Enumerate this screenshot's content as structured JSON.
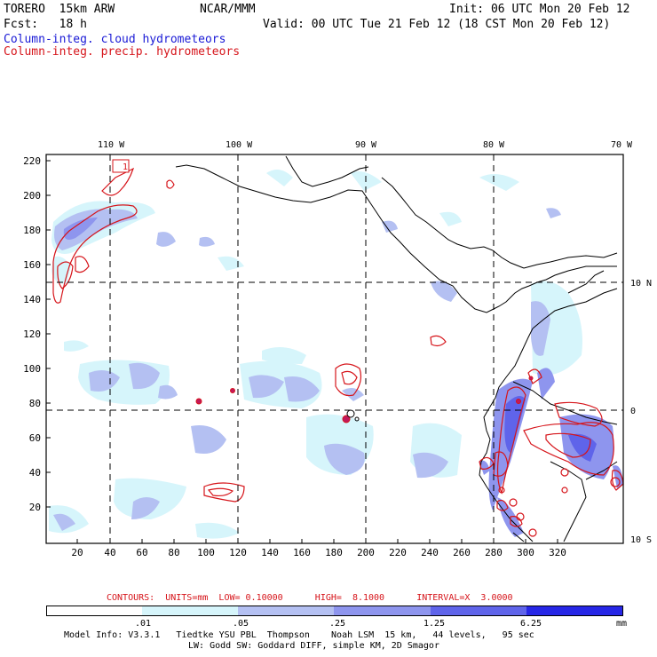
{
  "header": {
    "model": "TORERO  15km ARW",
    "org": "NCAR/MMM",
    "init": "Init: 06 UTC Mon 20 Feb 12",
    "fcst": "Fcst:   18 h",
    "valid": "Valid: 00 UTC Tue 21 Feb 12 (18 CST Mon 20 Feb 12)",
    "field1": "Column-integ. cloud hydrometeors",
    "field2": "Column-integ. precip. hydrometeors"
  },
  "map": {
    "lon_labels": [
      "110 W",
      "100 W",
      "90 W",
      "80 W",
      "70 W"
    ],
    "lat_labels": [
      "10 N",
      "0",
      "10 S"
    ],
    "y_ticks": [
      "220",
      "200",
      "180",
      "160",
      "140",
      "120",
      "100",
      "80",
      "60",
      "40",
      "20"
    ],
    "x_ticks": [
      "20",
      "40",
      "60",
      "80",
      "100",
      "120",
      "140",
      "160",
      "180",
      "200",
      "220",
      "240",
      "260",
      "280",
      "300",
      "320"
    ],
    "box_label": "1"
  },
  "contour_info": "CONTOURS:  UNITS=mm  LOW= 0.10000      HIGH=  8.1000      INTERVAL=X  3.0000",
  "legend": {
    "unit": "mm",
    "labels": [
      ".01",
      ".05",
      ".25",
      "1.25",
      "6.25"
    ],
    "colors": [
      "#ffffff",
      "#d6f5fb",
      "#b4c0f2",
      "#8e95ee",
      "#5f64ea",
      "#2626e6"
    ]
  },
  "footer": {
    "line1": "Model Info: V3.3.1   Tiedtke YSU PBL  Thompson    Noah LSM  15 km,   44 levels,   95 sec",
    "line2": "LW: Godd SW: Goddard DIFF, simple KM, 2D Smagor"
  }
}
